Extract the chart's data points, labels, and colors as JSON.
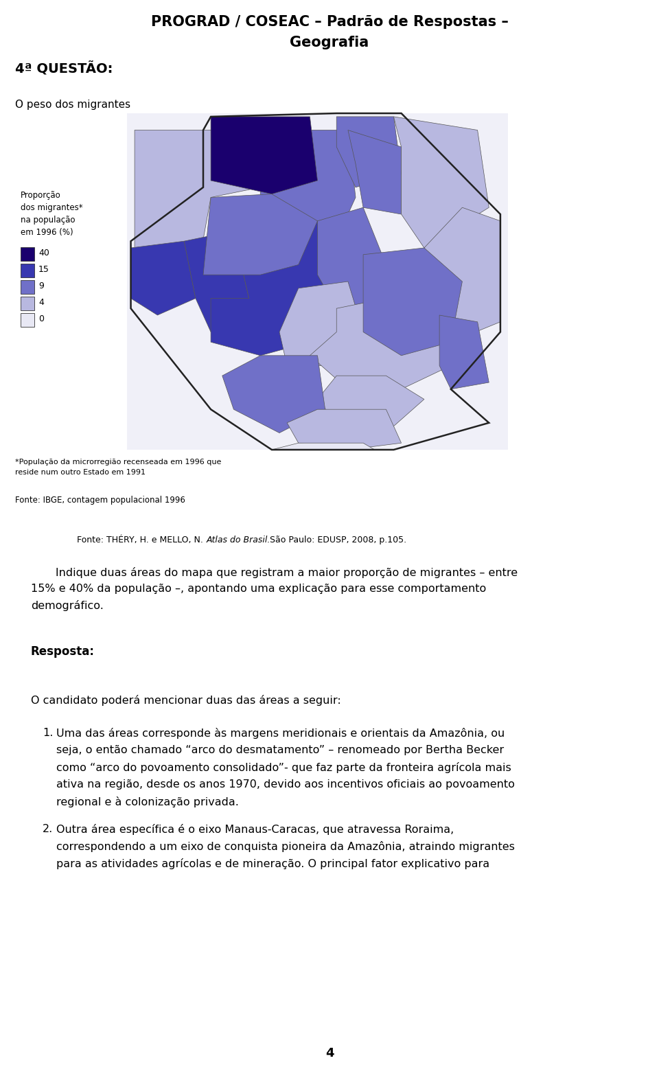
{
  "title_line1": "PROGRAD / COSEAC – Padrão de Respostas –",
  "title_line2": "Geografia",
  "questao": "4ª QUESTÃO:",
  "subtitulo": "O peso dos migrantes",
  "legenda_titulo": "Proporção\ndos migrantes*\nna população\nem 1996 (%)",
  "legenda_valores": [
    "40",
    "15",
    "9",
    "4",
    "0"
  ],
  "legenda_cores": [
    "#1a006e",
    "#3838b0",
    "#7070c8",
    "#b8b8e0",
    "#e8e8f4"
  ],
  "nota1_line1": "*População da microrregião recenseada em 1996 que",
  "nota1_line2": "reside num outro Estado em 1991",
  "fonte1": "Fonte: IBGE, contagem populacional 1996",
  "fonte2_pre": "Fonte: THÉRY, H. e MELLO, N. ",
  "fonte2_italic": "Atlas do Brasil.",
  "fonte2_post": " São Paulo: EDUSP, 2008, p.105.",
  "q_line1": "       Indique duas áreas do mapa que registram a maior proporção de migrantes – entre",
  "q_line2": "15% e 40% da população –, apontando uma explicação para esse comportamento",
  "q_line3": "demográfico.",
  "resposta_label": "Resposta:",
  "candidato_texto": "O candidato poderá mencionar duas das áreas a seguir:",
  "item1_num": "1.",
  "item1_l1": "Uma das áreas corresponde às margens meridionais e orientais da Amazônia, ou",
  "item1_l2": "seja, o então chamado “arco do desmatamento” – renomeado por Bertha Becker",
  "item1_l3": "como “arco do povoamento consolidado”- que faz parte da fronteira agrícola mais",
  "item1_l4": "ativa na região, desde os anos 1970, devido aos incentivos oficiais ao povoamento",
  "item1_l5": "regional e à colonização privada.",
  "item2_num": "2.",
  "item2_l1": "Outra área específica é o eixo Manaus-Caracas, que atravessa Roraima,",
  "item2_l2": "correspondendo a um eixo de conquista pioneira da Amazônia, atraindo migrantes",
  "item2_l3": "para as atividades agrícolas e de mineração. O principal fator explicativo para",
  "pagina": "4",
  "bg_color": "#ffffff",
  "text_color": "#000000"
}
